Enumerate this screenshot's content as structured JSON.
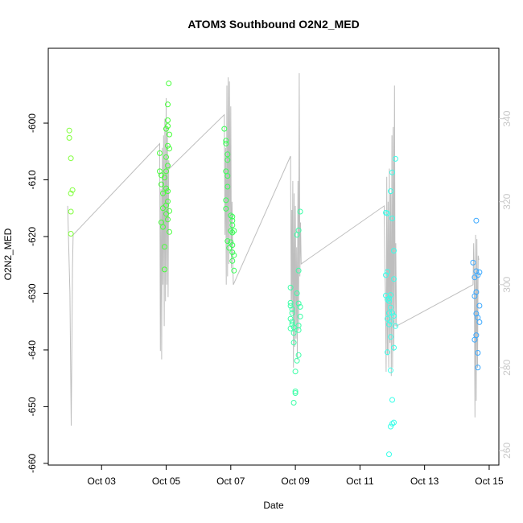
{
  "chart_data": {
    "type": "scatter",
    "title": "ATOM3 Southbound O2N2_MED",
    "xlabel": "Date",
    "ylabel": "O2N2_MED",
    "x_tick_labels": [
      "Oct 03",
      "Oct 05",
      "Oct 07",
      "Oct 09",
      "Oct 11",
      "Oct 13",
      "Oct 15"
    ],
    "x_ticks_days": [
      3,
      5,
      7,
      9,
      11,
      13,
      15
    ],
    "xlim_days": [
      1.35,
      15.3
    ],
    "y_ticks": [
      -600,
      -610,
      -620,
      -630,
      -640,
      -650,
      -660
    ],
    "ylim": [
      -660.3,
      -586.8
    ],
    "right_axis_ticks": [
      260,
      280,
      300,
      320,
      340
    ],
    "right_ylim": [
      256.5,
      357
    ],
    "colors": {
      "axis": "#000000",
      "right_axis": "#c8c8c8",
      "line": "#bebebe"
    },
    "series": [
      {
        "color": "#7fff3a",
        "points": [
          [
            2.0,
            -601.3
          ],
          [
            2.0,
            -602.6
          ],
          [
            2.05,
            -606.2
          ],
          [
            2.05,
            -612.4
          ],
          [
            2.1,
            -611.8
          ],
          [
            2.05,
            -615.6
          ],
          [
            2.05,
            -619.5
          ]
        ]
      },
      {
        "color": "#46ff3a",
        "points": [
          [
            4.8,
            -605.3
          ],
          [
            4.8,
            -608.5
          ],
          [
            4.85,
            -609.2
          ],
          [
            4.85,
            -610.8
          ],
          [
            4.9,
            -612.4
          ],
          [
            4.95,
            -609.6
          ],
          [
            4.85,
            -617.5
          ],
          [
            4.9,
            -618.3
          ],
          [
            4.95,
            -621.8
          ],
          [
            4.95,
            -625.8
          ],
          [
            4.9,
            -615.0
          ],
          [
            5.0,
            -601.0
          ],
          [
            5.05,
            -599.5
          ],
          [
            5.05,
            -600.5
          ],
          [
            5.1,
            -602.0
          ],
          [
            5.05,
            -604.0
          ],
          [
            5.1,
            -604.5
          ],
          [
            5.0,
            -606.0
          ],
          [
            5.05,
            -607.5
          ],
          [
            5.0,
            -608.5
          ],
          [
            5.0,
            -611.5
          ],
          [
            5.05,
            -612.0
          ],
          [
            5.05,
            -613.8
          ],
          [
            5.0,
            -614.5
          ],
          [
            5.1,
            -615.5
          ],
          [
            5.0,
            -616.0
          ],
          [
            5.05,
            -617.0
          ],
          [
            5.1,
            -619.2
          ],
          [
            5.05,
            -596.7
          ],
          [
            5.08,
            -593.0
          ]
        ]
      },
      {
        "color": "#3aff57",
        "points": [
          [
            6.8,
            -601.0
          ],
          [
            6.85,
            -603.1
          ],
          [
            6.85,
            -603.6
          ],
          [
            6.9,
            -605.5
          ],
          [
            6.9,
            -606.5
          ],
          [
            6.85,
            -608.5
          ],
          [
            6.9,
            -609.3
          ],
          [
            6.9,
            -611.2
          ],
          [
            6.85,
            -613.6
          ],
          [
            6.85,
            -615.1
          ],
          [
            6.9,
            -620.8
          ],
          [
            6.95,
            -622.0
          ],
          [
            7.0,
            -616.3
          ],
          [
            7.05,
            -616.5
          ],
          [
            7.05,
            -617.2
          ],
          [
            7.05,
            -618.0
          ],
          [
            7.0,
            -619.0
          ],
          [
            7.1,
            -619.0
          ],
          [
            7.05,
            -619.3
          ],
          [
            7.0,
            -621.0
          ],
          [
            7.05,
            -621.5
          ],
          [
            7.05,
            -622.8
          ],
          [
            7.1,
            -623.3
          ],
          [
            7.05,
            -624.3
          ],
          [
            7.1,
            -626.0
          ]
        ]
      },
      {
        "color": "#3affa6",
        "points": [
          [
            8.85,
            -629.0
          ],
          [
            8.85,
            -631.7
          ],
          [
            8.85,
            -632.2
          ],
          [
            8.9,
            -632.8
          ],
          [
            8.9,
            -633.5
          ],
          [
            8.85,
            -634.5
          ],
          [
            8.9,
            -635.0
          ],
          [
            8.9,
            -635.5
          ],
          [
            8.95,
            -636.0
          ],
          [
            8.85,
            -636.2
          ],
          [
            8.95,
            -637.0
          ],
          [
            8.95,
            -638.7
          ],
          [
            9.0,
            -643.8
          ],
          [
            9.0,
            -647.3
          ],
          [
            8.95,
            -649.3
          ],
          [
            9.0,
            -647.6
          ],
          [
            9.05,
            -619.7
          ],
          [
            9.1,
            -618.9
          ],
          [
            9.15,
            -615.6
          ],
          [
            9.1,
            -626.0
          ],
          [
            9.05,
            -630.0
          ],
          [
            9.1,
            -631.8
          ],
          [
            9.15,
            -632.4
          ],
          [
            9.15,
            -634.1
          ],
          [
            9.1,
            -635.7
          ],
          [
            9.1,
            -636.5
          ],
          [
            9.1,
            -640.9
          ],
          [
            9.05,
            -641.9
          ]
        ]
      },
      {
        "color": "#3affe9",
        "points": [
          [
            11.8,
            -615.8
          ],
          [
            11.85,
            -615.9
          ],
          [
            11.8,
            -626.8
          ],
          [
            11.85,
            -626.2
          ],
          [
            11.8,
            -630.4
          ],
          [
            11.9,
            -630.9
          ],
          [
            11.85,
            -631.1
          ],
          [
            11.9,
            -631.4
          ],
          [
            11.95,
            -630.3
          ],
          [
            11.95,
            -632.5
          ],
          [
            11.9,
            -633.5
          ],
          [
            11.85,
            -634.5
          ],
          [
            11.95,
            -635.0
          ],
          [
            11.9,
            -635.5
          ],
          [
            11.95,
            -637.7
          ],
          [
            11.85,
            -640.4
          ],
          [
            11.95,
            -643.6
          ],
          [
            11.95,
            -612.0
          ],
          [
            12.0,
            -608.7
          ],
          [
            12.1,
            -606.3
          ],
          [
            12.0,
            -616.8
          ],
          [
            12.05,
            -622.5
          ],
          [
            12.05,
            -627.5
          ],
          [
            12.0,
            -633.5
          ],
          [
            12.05,
            -634.0
          ],
          [
            12.1,
            -635.8
          ],
          [
            12.05,
            -639.6
          ],
          [
            12.0,
            -648.8
          ],
          [
            12.05,
            -652.8
          ],
          [
            12.0,
            -653.0
          ],
          [
            11.95,
            -653.5
          ],
          [
            11.9,
            -658.4
          ]
        ]
      },
      {
        "color": "#3aa8ff",
        "points": [
          [
            14.5,
            -624.6
          ],
          [
            14.55,
            -627.2
          ],
          [
            14.6,
            -617.2
          ],
          [
            14.6,
            -626.1
          ],
          [
            14.65,
            -626.8
          ],
          [
            14.7,
            -626.3
          ],
          [
            14.6,
            -629.8
          ],
          [
            14.55,
            -630.5
          ],
          [
            14.7,
            -632.2
          ],
          [
            14.6,
            -633.6
          ],
          [
            14.65,
            -634.3
          ],
          [
            14.7,
            -635.1
          ],
          [
            14.6,
            -637.4
          ],
          [
            14.55,
            -638.2
          ],
          [
            14.65,
            -640.5
          ],
          [
            14.65,
            -643.1
          ]
        ]
      }
    ],
    "line_series": [
      {
        "name": "",
        "points": [
          [
            1.95,
            319
          ],
          [
            2.02,
            298
          ],
          [
            2.06,
            266
          ],
          [
            2.1,
            304
          ],
          [
            2.12,
            312
          ],
          [
            4.8,
            334
          ],
          [
            4.82,
            284
          ],
          [
            4.84,
            323
          ],
          [
            4.86,
            282
          ],
          [
            4.88,
            333
          ],
          [
            4.9,
            300
          ],
          [
            4.92,
            336
          ],
          [
            4.94,
            290
          ],
          [
            4.96,
            340
          ],
          [
            4.98,
            296
          ],
          [
            5.0,
            345
          ],
          [
            5.02,
            300
          ],
          [
            5.04,
            338
          ],
          [
            5.06,
            297
          ],
          [
            5.08,
            330
          ],
          [
            5.1,
            328
          ],
          [
            6.8,
            341
          ],
          [
            6.82,
            312
          ],
          [
            6.84,
            333
          ],
          [
            6.86,
            300
          ],
          [
            6.88,
            348
          ],
          [
            6.9,
            302
          ],
          [
            6.92,
            350
          ],
          [
            6.94,
            305
          ],
          [
            6.96,
            349
          ],
          [
            6.98,
            310
          ],
          [
            7.0,
            343
          ],
          [
            7.02,
            304
          ],
          [
            7.04,
            320
          ],
          [
            7.06,
            306
          ],
          [
            7.08,
            300
          ],
          [
            8.85,
            331
          ],
          [
            8.87,
            296
          ],
          [
            8.89,
            318
          ],
          [
            8.9,
            293
          ],
          [
            8.92,
            325
          ],
          [
            8.94,
            280
          ],
          [
            8.96,
            322
          ],
          [
            8.98,
            285
          ],
          [
            9.0,
            319
          ],
          [
            9.02,
            287
          ],
          [
            9.04,
            309
          ],
          [
            9.06,
            282
          ],
          [
            9.08,
            325
          ],
          [
            9.1,
            289
          ],
          [
            9.12,
            351
          ],
          [
            9.14,
            302
          ],
          [
            9.16,
            315
          ],
          [
            9.18,
            305
          ],
          [
            11.75,
            319
          ],
          [
            11.77,
            304
          ],
          [
            11.79,
            296
          ],
          [
            11.81,
            279
          ],
          [
            11.83,
            326
          ],
          [
            11.85,
            283
          ],
          [
            11.87,
            320
          ],
          [
            11.89,
            280
          ],
          [
            11.91,
            328
          ],
          [
            11.93,
            286
          ],
          [
            11.95,
            322
          ],
          [
            11.97,
            278
          ],
          [
            11.99,
            336
          ],
          [
            12.01,
            280
          ],
          [
            12.03,
            338
          ],
          [
            12.05,
            284
          ],
          [
            12.07,
            348
          ],
          [
            12.09,
            290
          ],
          [
            12.11,
            310
          ],
          [
            12.13,
            290
          ],
          [
            14.5,
            300
          ],
          [
            14.52,
            310
          ],
          [
            14.54,
            300
          ],
          [
            14.56,
            268
          ],
          [
            14.58,
            312
          ],
          [
            14.6,
            272
          ],
          [
            14.62,
            311
          ],
          [
            14.64,
            280
          ],
          [
            14.66,
            307
          ],
          [
            14.68,
            306
          ]
        ]
      }
    ]
  }
}
